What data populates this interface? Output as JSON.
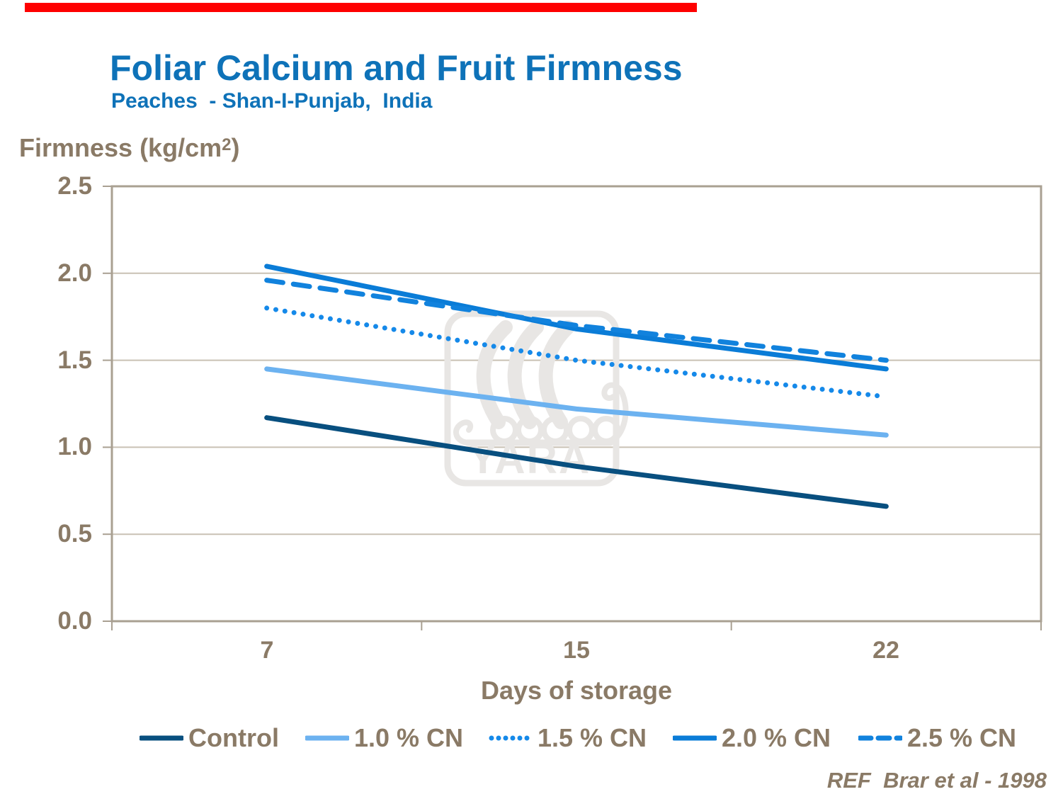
{
  "slide": {
    "title": "Foliar Calcium and Fruit Firmness",
    "subtitle": "Peaches  - Shan-I-Punjab,  India",
    "reference": "REF  Brar et al - 1998",
    "watermark_text": "YARA",
    "accent_bar_color": "#FE0000",
    "title_color": "#0E72B8",
    "text_color": "#8A7A66"
  },
  "chart_data": {
    "type": "line",
    "title": "Foliar Calcium and Fruit Firmness",
    "subtitle": "Peaches - Shan-I-Punjab, India",
    "xlabel": "Days of storage",
    "ylabel": "Firmness (kg/cm2)",
    "ylabel_parts": {
      "prefix": "Firmness (kg/cm",
      "sup": "2",
      "suffix": ")"
    },
    "x_categories": [
      "7",
      "15",
      "22"
    ],
    "yticks": [
      "2.5",
      "2.0",
      "1.5",
      "1.0",
      "0.5",
      "0.0"
    ],
    "ylim": [
      0,
      2.5
    ],
    "grid": "horizontal",
    "legend_position": "bottom",
    "axis_color": "#A9A092",
    "grid_color": "#C9C1B4",
    "watermark_color": "#E8E6E4",
    "series": [
      {
        "name": "Control",
        "style": "solid",
        "color": "#084F7F",
        "values": [
          1.17,
          0.89,
          0.66
        ]
      },
      {
        "name": "1.0 % CN",
        "style": "solid",
        "color": "#6CB2F0",
        "values": [
          1.45,
          1.22,
          1.07
        ]
      },
      {
        "name": "1.5 % CN",
        "style": "dotted",
        "color": "#1589E9",
        "values": [
          1.8,
          1.5,
          1.29
        ]
      },
      {
        "name": "2.0 % CN",
        "style": "solid",
        "color": "#0A7CD7",
        "values": [
          2.04,
          1.68,
          1.45
        ]
      },
      {
        "name": "2.5 % CN",
        "style": "dashed",
        "color": "#1182DD",
        "values": [
          1.96,
          1.7,
          1.5
        ]
      }
    ]
  }
}
